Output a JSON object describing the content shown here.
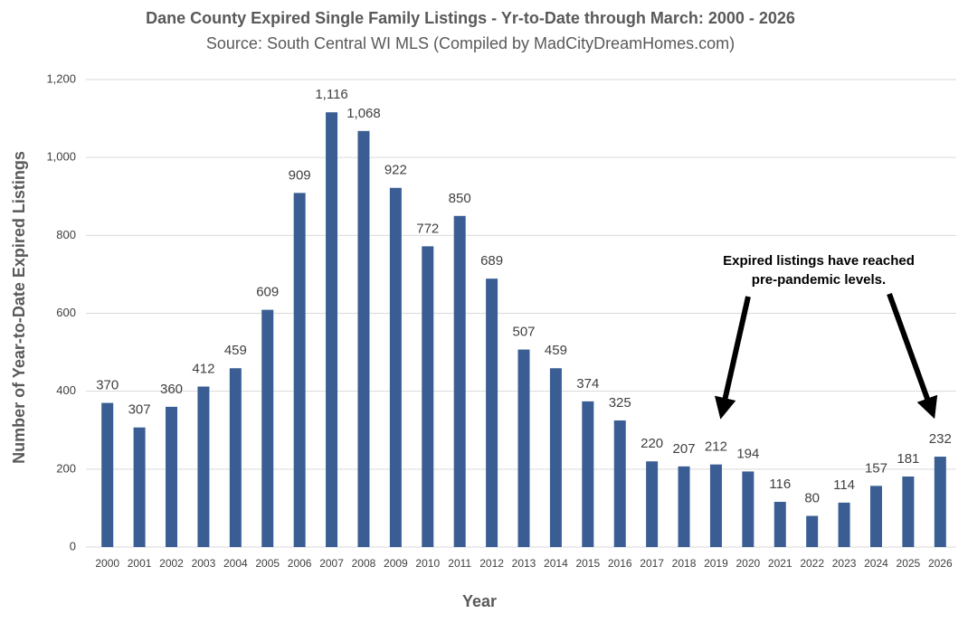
{
  "chart_data": {
    "type": "bar",
    "title": "Dane County Expired Single Family Listings - Yr-to-Date through March: 2000 - 2026",
    "subtitle": "Source: South Central WI MLS (Compiled by MadCityDreamHomes.com)",
    "x_label": "Year",
    "y_label": "Number of Year-to-Date Expired Listings",
    "annotation": [
      "Expired listings have reached",
      "pre-pandemic levels."
    ],
    "categories": [
      "2000",
      "2001",
      "2002",
      "2003",
      "2004",
      "2005",
      "2006",
      "2007",
      "2008",
      "2009",
      "2010",
      "2011",
      "2012",
      "2013",
      "2014",
      "2015",
      "2016",
      "2017",
      "2018",
      "2019",
      "2020",
      "2021",
      "2022",
      "2023",
      "2024",
      "2025",
      "2026"
    ],
    "values": [
      370,
      307,
      360,
      412,
      459,
      609,
      909,
      1116,
      1068,
      922,
      772,
      850,
      689,
      507,
      459,
      374,
      325,
      220,
      207,
      212,
      194,
      116,
      80,
      114,
      157,
      181,
      232
    ],
    "value_labels": [
      "370",
      "307",
      "360",
      "412",
      "459",
      "609",
      "909",
      "1,116",
      "1,068",
      "922",
      "772",
      "850",
      "689",
      "507",
      "459",
      "374",
      "325",
      "220",
      "207",
      "212",
      "194",
      "116",
      "80",
      "114",
      "157",
      "181",
      "232"
    ],
    "color": "#3a5e93",
    "ylim": [
      0,
      1200
    ],
    "yticks": [
      0,
      200,
      400,
      600,
      800,
      {
        "value": 1000,
        "label": "1,000"
      },
      {
        "value": 1200,
        "label": "1,200"
      }
    ],
    "grid": true
  }
}
